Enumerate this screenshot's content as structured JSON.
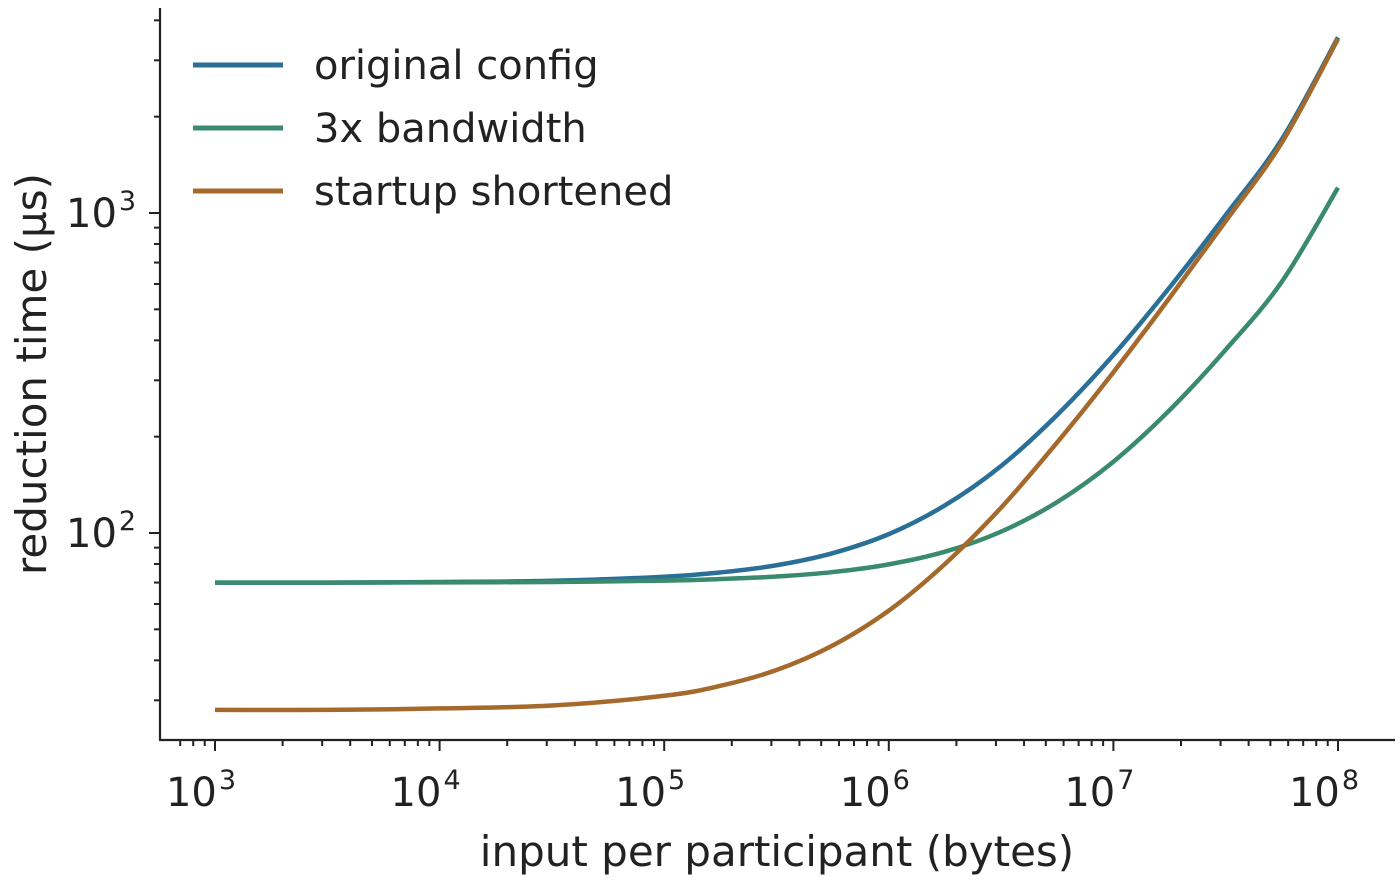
{
  "chart_data": {
    "type": "line",
    "xlabel": "input per participant (bytes)",
    "ylabel": "reduction time (µs)",
    "x_scale": "log",
    "y_scale": "log",
    "xlim": [
      700,
      140000000
    ],
    "ylim": [
      24,
      4300
    ],
    "x_ticks": [
      {
        "value": 1000,
        "base": "10",
        "exp": "3"
      },
      {
        "value": 10000,
        "base": "10",
        "exp": "4"
      },
      {
        "value": 100000,
        "base": "10",
        "exp": "5"
      },
      {
        "value": 1000000,
        "base": "10",
        "exp": "6"
      },
      {
        "value": 10000000,
        "base": "10",
        "exp": "7"
      },
      {
        "value": 100000000,
        "base": "10",
        "exp": "8"
      }
    ],
    "y_ticks": [
      {
        "value": 100,
        "base": "10",
        "exp": "2"
      },
      {
        "value": 1000,
        "base": "10",
        "exp": "3"
      }
    ],
    "grid": false,
    "legend_position": "top-left",
    "x": [
      1000,
      3162,
      10000,
      31623,
      100000,
      177828,
      316228,
      562341,
      1000000,
      1778279,
      3162278,
      5623413,
      10000000,
      17782794,
      31622777,
      56234133,
      100000000
    ],
    "series": [
      {
        "name": "original config",
        "color": "#2a6f97",
        "values": [
          70,
          70,
          70.3,
          70.9,
          73,
          75.3,
          79.3,
          86.5,
          99.2,
          122,
          162,
          234,
          360,
          585,
          985,
          1700,
          3540
        ]
      },
      {
        "name": "3x bandwidth",
        "color": "#3a8a6e",
        "values": [
          70,
          70,
          70.1,
          70.3,
          71,
          71.8,
          73.1,
          75.5,
          79.8,
          87.4,
          101,
          125,
          167,
          242,
          374,
          610,
          1200
        ]
      },
      {
        "name": "startup shortened",
        "color": "#a5692c",
        "values": [
          28,
          28,
          28.3,
          28.9,
          31,
          33.3,
          37.3,
          44.5,
          57.2,
          80,
          120,
          192,
          318,
          543,
          943,
          1660,
          3500
        ]
      }
    ]
  }
}
